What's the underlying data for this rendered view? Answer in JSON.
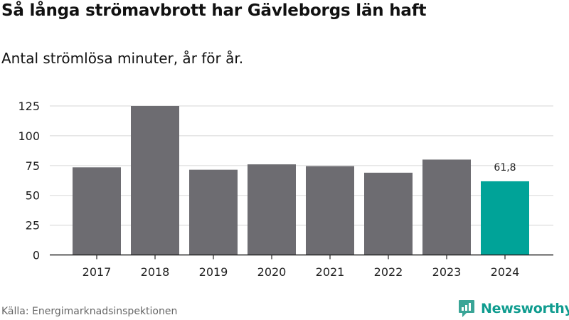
{
  "title": "Så långa strömavbrott har Gävleborgs län haft",
  "subtitle": "Antal strömlösa minuter, år för år.",
  "source": "Källa: Energimarknadsinspektionen",
  "brand": "Newsworthy",
  "colors": {
    "bar": "#6d6c71",
    "highlight": "#00a398",
    "grid": "#dddddd",
    "axis": "#222222",
    "brand": "#0f9c8f"
  },
  "chart_data": {
    "type": "bar",
    "categories": [
      "2017",
      "2018",
      "2019",
      "2020",
      "2021",
      "2022",
      "2023",
      "2024"
    ],
    "values": [
      73.5,
      125,
      71.5,
      76,
      74.5,
      69,
      80,
      61.8
    ],
    "highlight_index": 7,
    "data_labels": [
      {
        "index": 7,
        "text": "61,8"
      }
    ],
    "yticks": [
      0,
      25,
      50,
      75,
      100,
      125
    ],
    "ylim": [
      0,
      130
    ],
    "grid": true,
    "legend": "none",
    "xlabel": "",
    "ylabel": ""
  }
}
